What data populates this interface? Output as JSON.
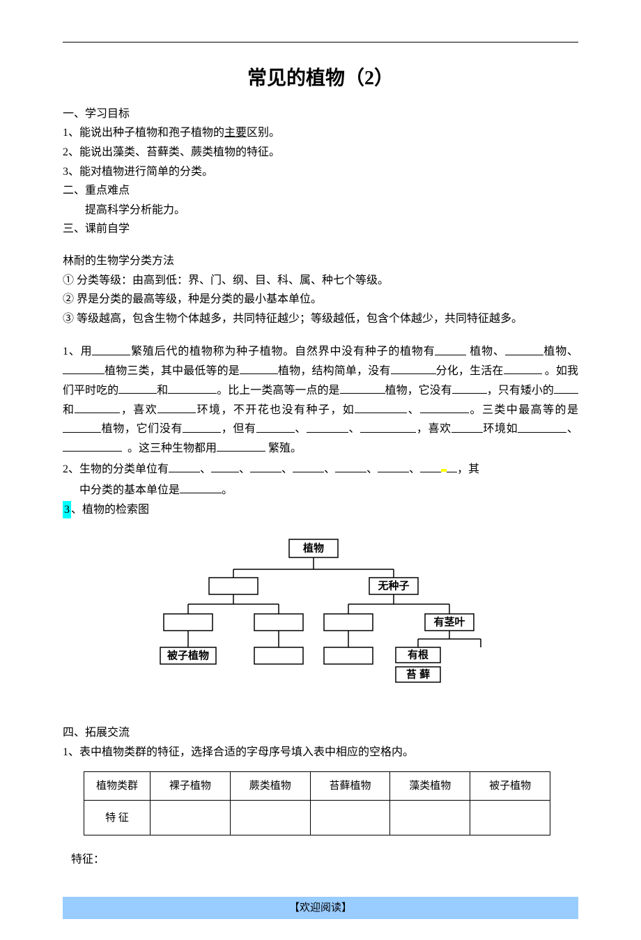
{
  "title": "常见的植物（2）",
  "sections": {
    "s1_title": "一、学习目标",
    "s1_items": {
      "i1": "1、能说出种子植物和孢子植物的主要区别。",
      "i2": "2、能说出藻类、苔藓类、蕨类植物的特征。",
      "i3": "3、能对植物进行简单的分类。"
    },
    "s2_title": "二、重点难点",
    "s2_body": "提高科学分析能力。",
    "s3_title": "三、课前自学",
    "linnaeus_title": "林耐的生物学分类方法",
    "linnaeus": {
      "l1": "① 分类等级：由高到低：界、门、纲、目、科、属、种七个等级。",
      "l2": "② 界是分类的最高等级，种是分类的最小基本单位。",
      "l3": "③ 等级越高，包含生物个体越多，共同特征越少；等级越低，包含个体越少，共同特征越多。"
    },
    "q1": {
      "pre": "1、用",
      "t1": "繁殖后代的植物称为种子植物。自然界中没有种子的植物有",
      "t2": "植物、",
      "t3": "植物、",
      "t4": "植物三类，其中最低等的是",
      "t5": "植物，结构简单，没有",
      "t6": "分化，生活在",
      "t7": "。如我们平时吃的",
      "t8": "和",
      "t9": "。比上一类高等一点的是",
      "t10": "植物，它没有",
      "t11": "，只有矮小的",
      "t12": "和",
      "t13": "，喜欢",
      "t14": "环境，不开花也没有种子，如",
      "t15": "、",
      "t16": "。三类中最高等的是",
      "t17": "植物，它们没有",
      "t18": "，但有",
      "t19": "、",
      "t20": "、",
      "t21": "，喜欢",
      "t22": "环境如",
      "t23": "、",
      "t24": "。这三种生物都用",
      "t25": "繁殖。"
    },
    "q2": {
      "pre": "2、生物的分类单位有",
      "sep": "、",
      "tail1": "，其",
      "tail2": "中分类的基本单位是",
      "end": "。"
    },
    "q3_label": "3",
    "q3_text": "、植物的检索图",
    "tree": {
      "root": "植物",
      "no_seed": "无种子",
      "stem_leaf": "有茎叶",
      "has_root": "有根",
      "moss": "苔 藓",
      "angiosperm": "被子植物",
      "node_fill": "#ffffff",
      "node_stroke": "#000000",
      "line_color": "#000000"
    },
    "s4_title": "四、拓展交流",
    "s4_q1": "1、表中植物类群的特征，选择合适的字母序号填入表中相应的空格内。",
    "table": {
      "row1": {
        "h": "植物类群",
        "c1": "裸子植物",
        "c2": "蕨类植物",
        "c3": "苔藓植物",
        "c4": "藻类植物",
        "c5": "被子植物"
      },
      "row2": {
        "h": "特      征"
      }
    },
    "features_label": "特征：",
    "footer": "【欢迎阅读】"
  },
  "styles": {
    "highlight_yellow": "#ffff00",
    "highlight_blue": "#00ffff",
    "footer_bg": "#99ccff",
    "text_color": "#000000",
    "page_bg": "#ffffff"
  }
}
